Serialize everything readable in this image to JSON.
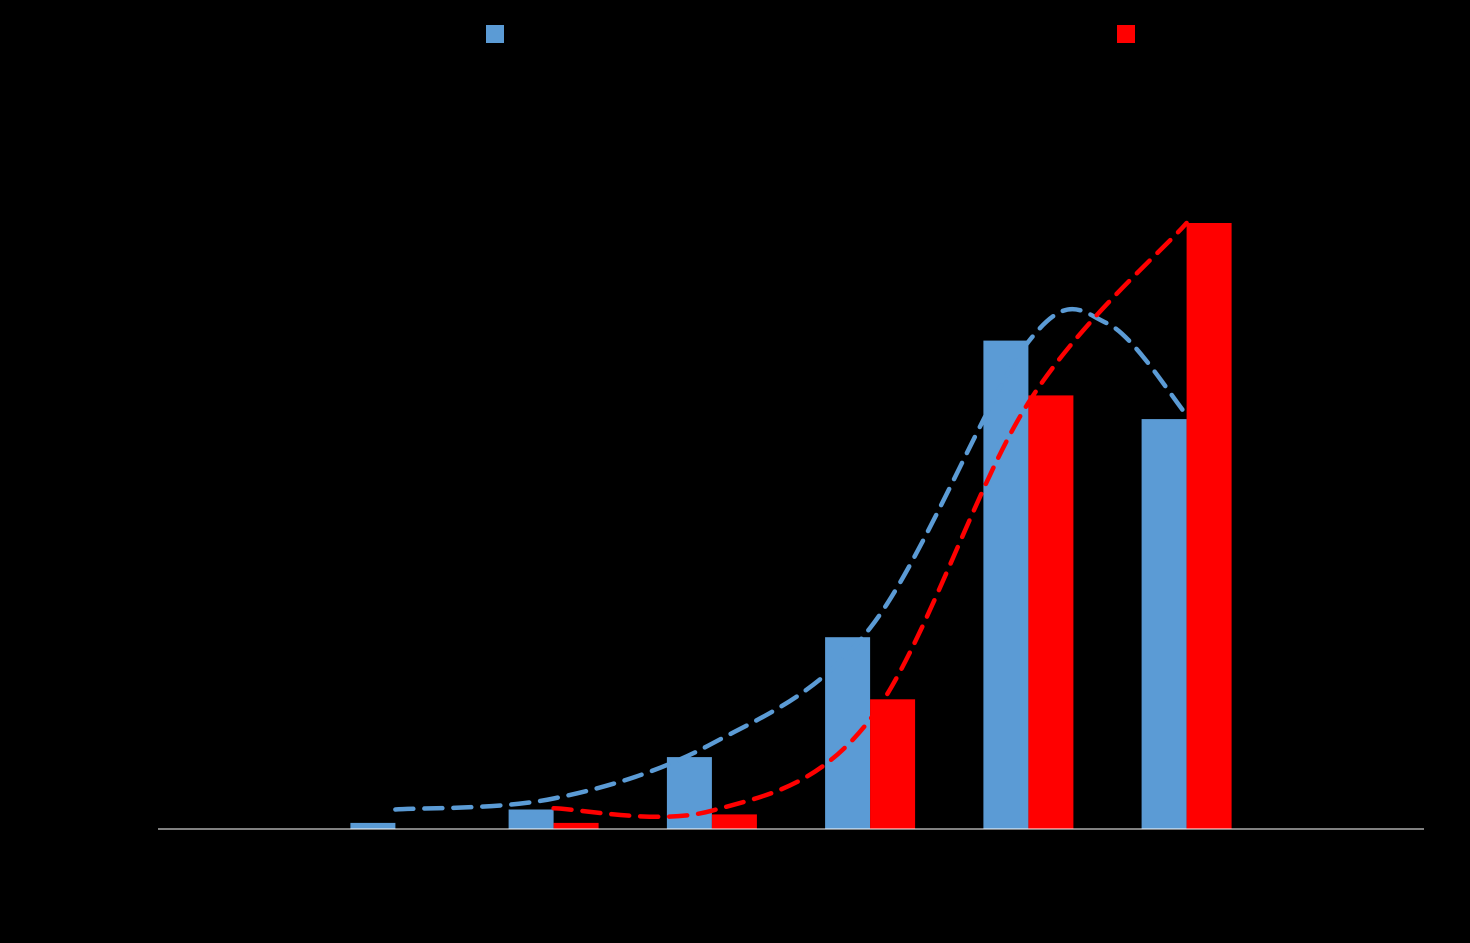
{
  "chart_data": {
    "type": "bar",
    "title": "",
    "xlabel": "",
    "ylabel": "",
    "ylim": [
      0,
      100
    ],
    "grid": false,
    "legend_position": "top",
    "background": "#000000",
    "axis_color": "#ffffff",
    "categories": [
      "",
      "",
      "",
      "",
      "",
      "",
      "",
      ""
    ],
    "series": [
      {
        "color": "#5b9bd5",
        "values": [
          0,
          1,
          3.2,
          11.8,
          31.5,
          80.2,
          67.3,
          0
        ]
      },
      {
        "color": "#ff0000",
        "values": [
          0,
          0,
          1,
          2.4,
          21.3,
          71.2,
          99.5,
          0
        ]
      }
    ],
    "trendlines": [
      {
        "series_index": 0,
        "style": "dashed",
        "color": "#5b9bd5",
        "x": [
          1,
          2,
          3,
          4,
          5,
          5.5,
          6
        ],
        "y": [
          3.2,
          5,
          14,
          33,
          80,
          83,
          68
        ]
      },
      {
        "series_index": 1,
        "style": "dashed",
        "color": "#ff0000",
        "x": [
          2,
          3,
          4,
          5,
          6
        ],
        "y": [
          3.4,
          3,
          18,
          70,
          99.5
        ]
      }
    ]
  }
}
